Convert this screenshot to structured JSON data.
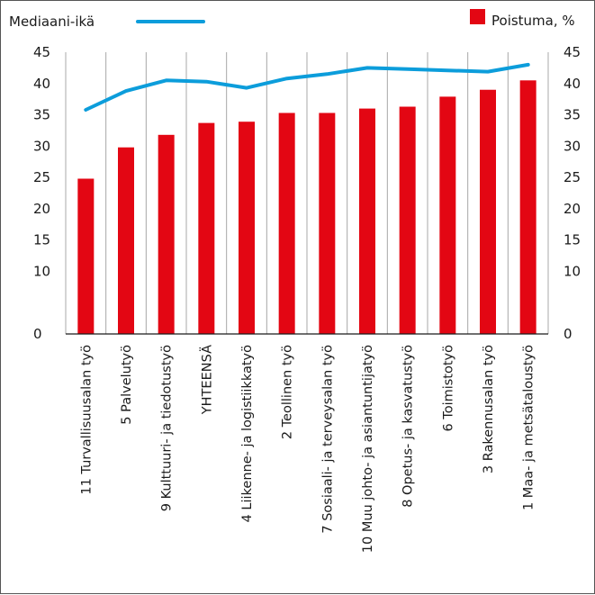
{
  "chart_data": {
    "type": "bar",
    "categories": [
      "11 Turvallisuusalan työ",
      "5 Palvelutyö",
      "9 Kulttuuri- ja tiedotustyö",
      "YHTEENSÄ",
      "4 Liikenne- ja logistiikkatyö",
      "2 Teollinen työ",
      "7 Sosiaali- ja terveysalan työ",
      "10 Muu johto- ja asiantuntijatyö",
      "8 Opetus- ja kasvatustyö",
      "6 Toimistotyö",
      "3 Rakennusalan työ",
      "1 Maa- ja metsätaloustyö"
    ],
    "series": [
      {
        "name": "Poistuma, %",
        "type": "bar",
        "axis": "right",
        "color": "#e30613",
        "values": [
          24.8,
          29.8,
          31.8,
          33.7,
          33.9,
          35.3,
          35.3,
          36.0,
          36.3,
          37.9,
          39.0,
          40.5
        ]
      },
      {
        "name": "Mediaani-ikä",
        "type": "line",
        "axis": "left",
        "color": "#0c9ddb",
        "values": [
          35.8,
          38.8,
          40.5,
          40.3,
          39.3,
          40.8,
          41.5,
          42.5,
          42.3,
          42.1,
          41.9,
          43.0
        ]
      }
    ],
    "left_axis": {
      "ylim": [
        0,
        45
      ],
      "ticks": [
        "0",
        "10",
        "15",
        "20",
        "25",
        "30",
        "35",
        "40",
        "45"
      ]
    },
    "right_axis": {
      "ylim": [
        0,
        45
      ],
      "ticks": [
        "0",
        "10",
        "15",
        "20",
        "25",
        "30",
        "35",
        "40",
        "45"
      ]
    },
    "grid": "vertical",
    "legend": {
      "line_label": "Mediaani-ikä",
      "bar_label": "Poistuma, %",
      "placement": "top"
    },
    "colors": {
      "bar": "#e30613",
      "line": "#0c9ddb",
      "grid": "#a8a8a8",
      "axis": "#1a1a1a",
      "frame": "#555555"
    }
  }
}
